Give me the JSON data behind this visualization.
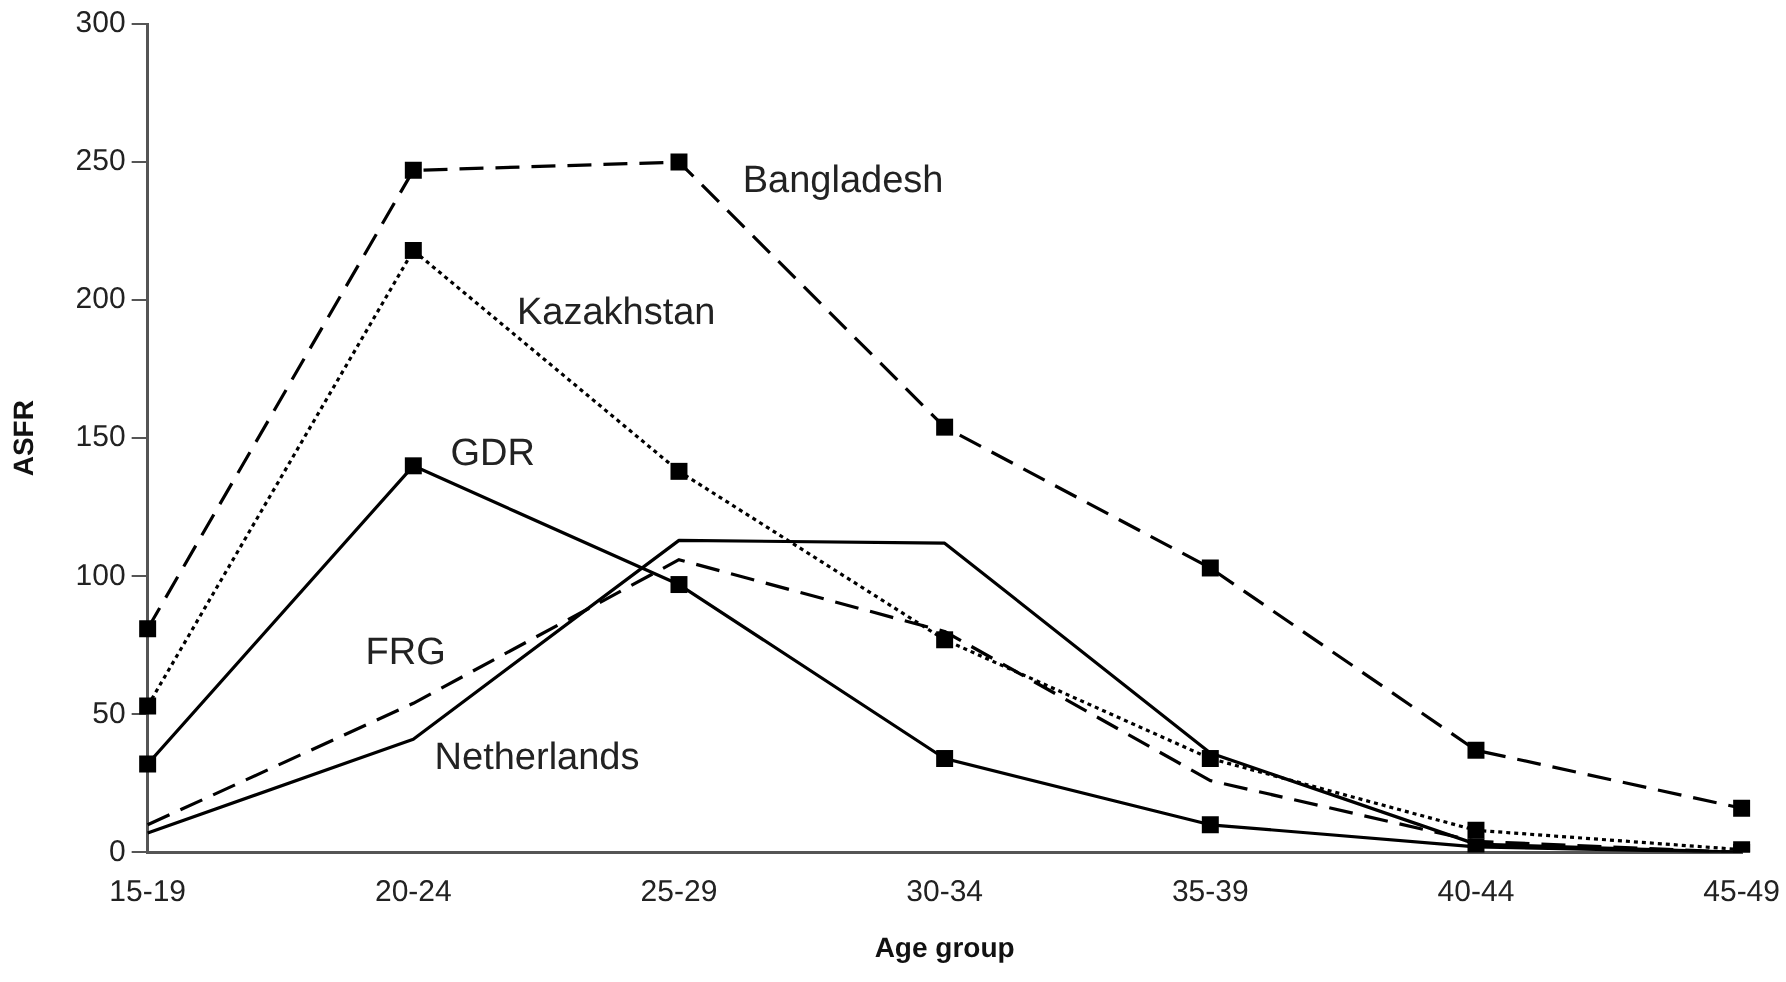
{
  "chart_data": {
    "type": "line",
    "xlabel": "Age group",
    "ylabel": "ASFR",
    "categories": [
      "15-19",
      "20-24",
      "25-29",
      "30-34",
      "35-39",
      "40-44",
      "45-49"
    ],
    "series": [
      {
        "name": "Bangladesh",
        "color": "#000000",
        "line_style": "dashed",
        "marker": "square",
        "values": [
          81,
          247,
          250,
          154,
          103,
          37,
          16
        ]
      },
      {
        "name": "Kazakhstan",
        "color": "#000000",
        "line_style": "dotted",
        "marker": "square",
        "values": [
          53,
          218,
          138,
          77,
          34,
          8,
          1
        ]
      },
      {
        "name": "GDR",
        "color": "#000000",
        "line_style": "solid",
        "marker": "square",
        "values": [
          32,
          140,
          97,
          34,
          10,
          2,
          0
        ]
      },
      {
        "name": "FRG",
        "color": "#000000",
        "line_style": "dashed",
        "marker": "none",
        "values": [
          10,
          54,
          106,
          80,
          26,
          4,
          0
        ]
      },
      {
        "name": "Netherlands",
        "color": "#000000",
        "line_style": "solid",
        "marker": "none",
        "values": [
          7,
          41,
          113,
          112,
          36,
          3,
          0
        ]
      }
    ],
    "ylim": [
      0,
      300
    ],
    "yticks": [
      0,
      50,
      100,
      150,
      200,
      250,
      300
    ],
    "grid": false,
    "legend": false
  }
}
